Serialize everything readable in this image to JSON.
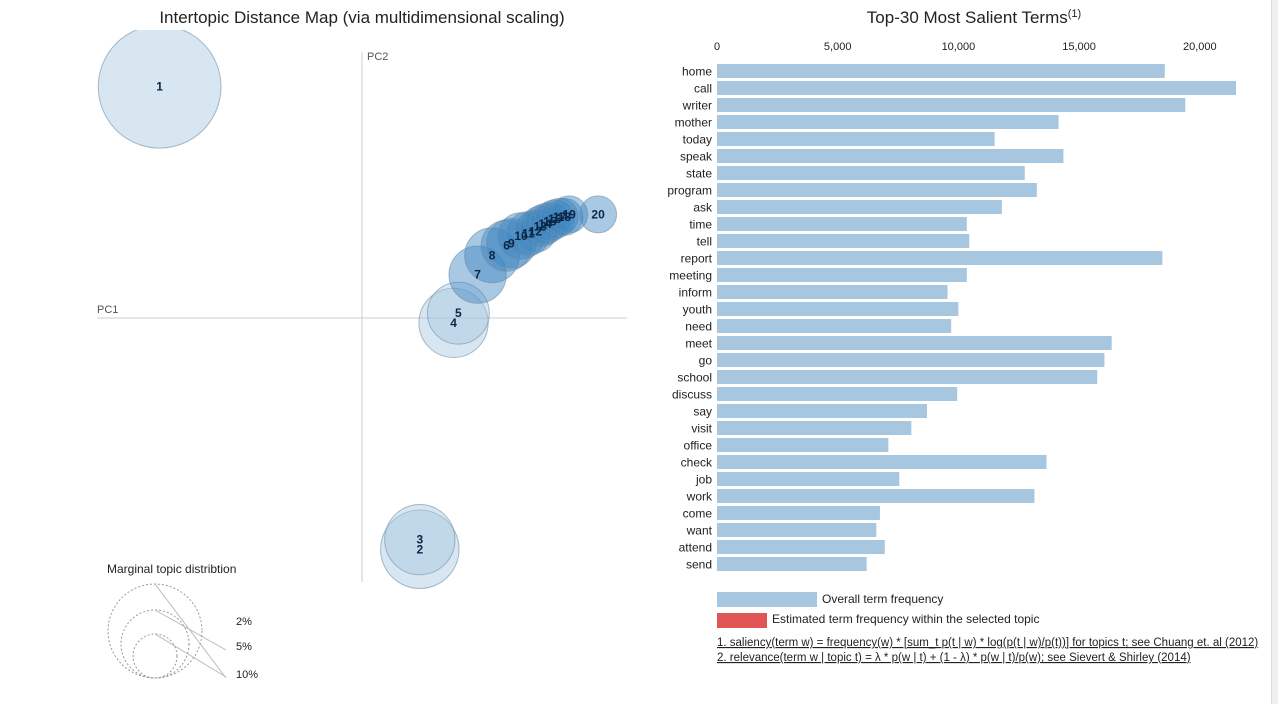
{
  "chart_data": [
    {
      "type": "scatter",
      "title": "Intertopic Distance Map (via multidimensional scaling)",
      "xlabel": "PC1",
      "ylabel": "PC2",
      "xlim": [
        -0.55,
        0.55
      ],
      "ylim": [
        -0.55,
        0.55
      ],
      "points": [
        {
          "label": "1",
          "x": -0.42,
          "y": 0.48,
          "size": 11.0
        },
        {
          "label": "2",
          "x": 0.12,
          "y": -0.48,
          "size": 4.5
        },
        {
          "label": "3",
          "x": 0.12,
          "y": -0.46,
          "size": 3.6
        },
        {
          "label": "4",
          "x": 0.19,
          "y": -0.01,
          "size": 3.5
        },
        {
          "label": "5",
          "x": 0.2,
          "y": 0.01,
          "size": 2.8
        },
        {
          "label": "7",
          "x": 0.24,
          "y": 0.09,
          "size": 2.4
        },
        {
          "label": "8",
          "x": 0.27,
          "y": 0.13,
          "size": 2.2
        },
        {
          "label": "6",
          "x": 0.3,
          "y": 0.15,
          "size": 1.9
        },
        {
          "label": "9",
          "x": 0.31,
          "y": 0.155,
          "size": 1.8
        },
        {
          "label": "10",
          "x": 0.33,
          "y": 0.17,
          "size": 1.6
        },
        {
          "label": "11",
          "x": 0.345,
          "y": 0.175,
          "size": 1.4
        },
        {
          "label": "12",
          "x": 0.36,
          "y": 0.18,
          "size": 1.3
        },
        {
          "label": "13",
          "x": 0.37,
          "y": 0.19,
          "size": 1.2
        },
        {
          "label": "14",
          "x": 0.38,
          "y": 0.195,
          "size": 1.2
        },
        {
          "label": "15",
          "x": 0.39,
          "y": 0.2,
          "size": 1.1
        },
        {
          "label": "16",
          "x": 0.4,
          "y": 0.205,
          "size": 1.1
        },
        {
          "label": "17",
          "x": 0.41,
          "y": 0.21,
          "size": 1.0
        },
        {
          "label": "18",
          "x": 0.42,
          "y": 0.21,
          "size": 1.0
        },
        {
          "label": "19",
          "x": 0.43,
          "y": 0.215,
          "size": 1.0
        },
        {
          "label": "20",
          "x": 0.49,
          "y": 0.215,
          "size": 1.0
        }
      ],
      "legend": {
        "title": "Marginal topic distribtion",
        "entries": [
          {
            "label": "2%",
            "value": 2
          },
          {
            "label": "5%",
            "value": 5
          },
          {
            "label": "10%",
            "value": 10
          }
        ]
      }
    },
    {
      "type": "bar",
      "orientation": "horizontal",
      "title": "Top-30 Most Salient Terms",
      "title_superscript": "(1)",
      "xlim": [
        0,
        21500
      ],
      "x_ticks": [
        {
          "value": 0,
          "label": "0"
        },
        {
          "value": 5000,
          "label": "5,000"
        },
        {
          "value": 10000,
          "label": "10,000"
        },
        {
          "value": 15000,
          "label": "15,000"
        },
        {
          "value": 20000,
          "label": "20,000"
        }
      ],
      "categories": [
        "home",
        "call",
        "writer",
        "mother",
        "today",
        "speak",
        "state",
        "program",
        "ask",
        "time",
        "tell",
        "report",
        "meeting",
        "inform",
        "youth",
        "need",
        "meet",
        "go",
        "school",
        "discuss",
        "say",
        "visit",
        "office",
        "check",
        "job",
        "work",
        "come",
        "want",
        "attend",
        "send"
      ],
      "series": [
        {
          "name": "Overall term frequency",
          "color": "#a6c7df",
          "values": [
            18550,
            21500,
            19400,
            14150,
            11500,
            14350,
            12750,
            13250,
            11800,
            10350,
            10450,
            18450,
            10350,
            9550,
            10000,
            9700,
            16350,
            16050,
            15750,
            9950,
            8700,
            8050,
            7100,
            13650,
            7550,
            13150,
            6750,
            6600,
            6950,
            6200
          ]
        }
      ],
      "legend": [
        {
          "label": "Overall term frequency",
          "color": "#a6c7df"
        },
        {
          "label": "Estimated term frequency within the selected topic",
          "color": "#e05555"
        }
      ],
      "footnotes": [
        "1. saliency(term w) = frequency(w) * [sum_t p(t | w) * log(p(t | w)/p(t))] for topics t; see Chuang et. al (2012)",
        "2. relevance(term w | topic t) = λ * p(w | t) + (1 - λ) * p(w | t)/p(w); see Sievert & Shirley (2014)"
      ]
    }
  ]
}
